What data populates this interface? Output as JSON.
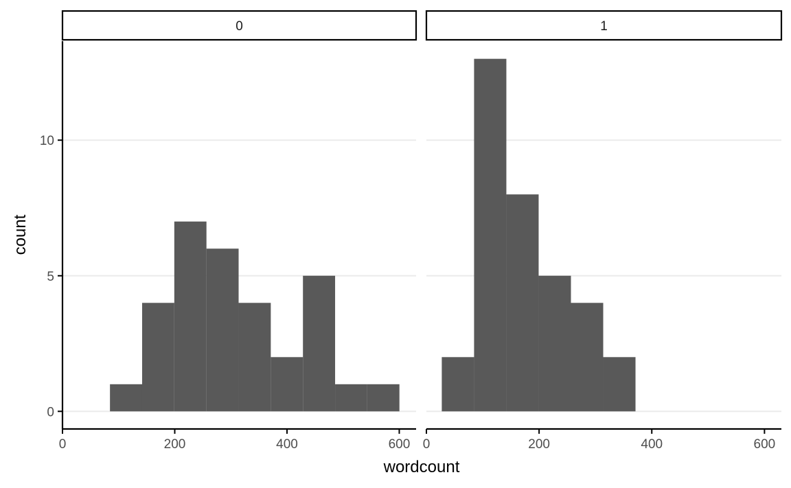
{
  "chart_data": {
    "type": "bar",
    "subtype": "faceted histogram",
    "xlabel": "wordcount",
    "ylabel": "count",
    "xlim": [
      0,
      630
    ],
    "ylim": [
      -0.65,
      13.65
    ],
    "x_ticks": [
      0,
      200,
      400,
      600
    ],
    "y_ticks": [
      0,
      5,
      10
    ],
    "grid": "horizontal major gridlines",
    "bin_width": 57.3,
    "colors": {
      "bar": "#595959",
      "grid": "#ebebeb",
      "axis": "#000000",
      "panel": "#ffffff"
    },
    "facets": [
      {
        "label": "0",
        "bins": [
          {
            "x_start": 84.6,
            "x_end": 141.9,
            "count": 1
          },
          {
            "x_start": 141.9,
            "x_end": 199.2,
            "count": 4
          },
          {
            "x_start": 199.2,
            "x_end": 256.5,
            "count": 7
          },
          {
            "x_start": 256.5,
            "x_end": 313.8,
            "count": 6
          },
          {
            "x_start": 313.8,
            "x_end": 371.1,
            "count": 4
          },
          {
            "x_start": 371.1,
            "x_end": 428.4,
            "count": 2
          },
          {
            "x_start": 428.4,
            "x_end": 485.7,
            "count": 5
          },
          {
            "x_start": 485.7,
            "x_end": 543.0,
            "count": 1
          },
          {
            "x_start": 543.0,
            "x_end": 600.3,
            "count": 1
          }
        ]
      },
      {
        "label": "1",
        "bins": [
          {
            "x_start": 27.3,
            "x_end": 84.6,
            "count": 2
          },
          {
            "x_start": 84.6,
            "x_end": 141.9,
            "count": 13
          },
          {
            "x_start": 141.9,
            "x_end": 199.2,
            "count": 8
          },
          {
            "x_start": 199.2,
            "x_end": 256.5,
            "count": 5
          },
          {
            "x_start": 256.5,
            "x_end": 313.8,
            "count": 4
          },
          {
            "x_start": 313.8,
            "x_end": 371.1,
            "count": 2
          }
        ]
      }
    ]
  }
}
